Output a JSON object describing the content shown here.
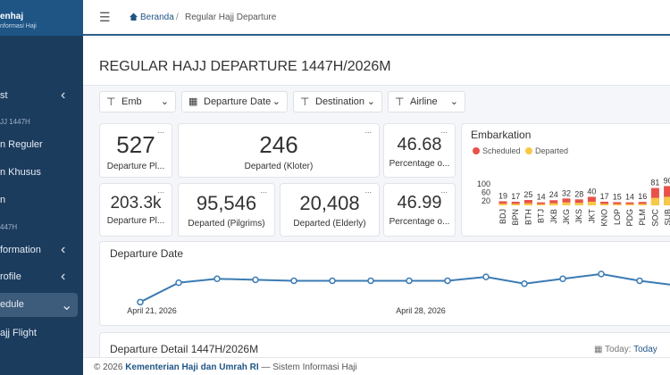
{
  "sidebar": {
    "brand": "enhaj",
    "subtitle": "nformasi Haji",
    "items": [
      "st",
      "JJ 1447H",
      "n Reguler",
      "n Khusus",
      "n",
      "447H",
      "formation",
      "rofile",
      "edule",
      "ajj Flight"
    ]
  },
  "breadcrumb": [
    "Beranda",
    "Regular Hajj Departure"
  ],
  "title": "REGULAR HAJJ DEPARTURE 1447H/2026M",
  "filters": [
    "Emb",
    "Departure Date",
    "Destination",
    "Airline"
  ],
  "cards": [
    {
      "value": "527",
      "label": "Departure Pl..."
    },
    {
      "value": "246",
      "label": "Departed (Kloter)"
    },
    {
      "value": "46.68",
      "label": "Percentage o..."
    },
    {
      "value": "203.3k",
      "label": "Departure Pl..."
    },
    {
      "value": "95,546",
      "label": "Departed (Pilgrims)"
    },
    {
      "value": "20,408",
      "label": "Departed (Elderly)"
    },
    {
      "value": "46.99",
      "label": "Percentage o..."
    }
  ],
  "chart_data": [
    {
      "type": "bar",
      "title": "Embarkation",
      "categories": [
        "BDJ",
        "BPN",
        "BTH",
        "BTJ",
        "JKB",
        "JKG",
        "JKS",
        "JKT",
        "KNO",
        "LOP",
        "PDG",
        "PLM",
        "SOC",
        "SUB"
      ],
      "series": [
        {
          "name": "Scheduled",
          "color": "#e8524a",
          "values": [
            19,
            17,
            25,
            14,
            24,
            32,
            28,
            40,
            17,
            15,
            14,
            16,
            81,
            90
          ]
        },
        {
          "name": "Departed",
          "color": "#f7c948",
          "values": [
            8,
            7,
            10,
            6,
            10,
            14,
            12,
            17,
            7,
            6,
            6,
            7,
            35,
            40
          ]
        }
      ],
      "ylim": [
        0,
        100
      ],
      "yticks": [
        20,
        60,
        100
      ],
      "legend": "top-left"
    },
    {
      "type": "line",
      "title": "Departure Date",
      "categories": [
        "April 21, 2026",
        null,
        null,
        null,
        null,
        null,
        null,
        "April 28, 2026",
        null,
        null,
        null,
        null,
        null,
        null,
        null
      ],
      "values": [
        4,
        14,
        16,
        15.5,
        15,
        15,
        15,
        15,
        15,
        17,
        13.5,
        16,
        18.5,
        15,
        12.5
      ],
      "color": "#3b7bb5",
      "ylim": [
        0,
        20
      ]
    }
  ],
  "detail": {
    "title": "Departure Detail 1447H/2026M",
    "date_label": "Today:",
    "date_value": "Today"
  },
  "footer": {
    "copyright": "© 2026",
    "org": "Kementerian Haji dan Umrah RI",
    "separator": "—",
    "system": "Sistem Informasi Haji"
  }
}
